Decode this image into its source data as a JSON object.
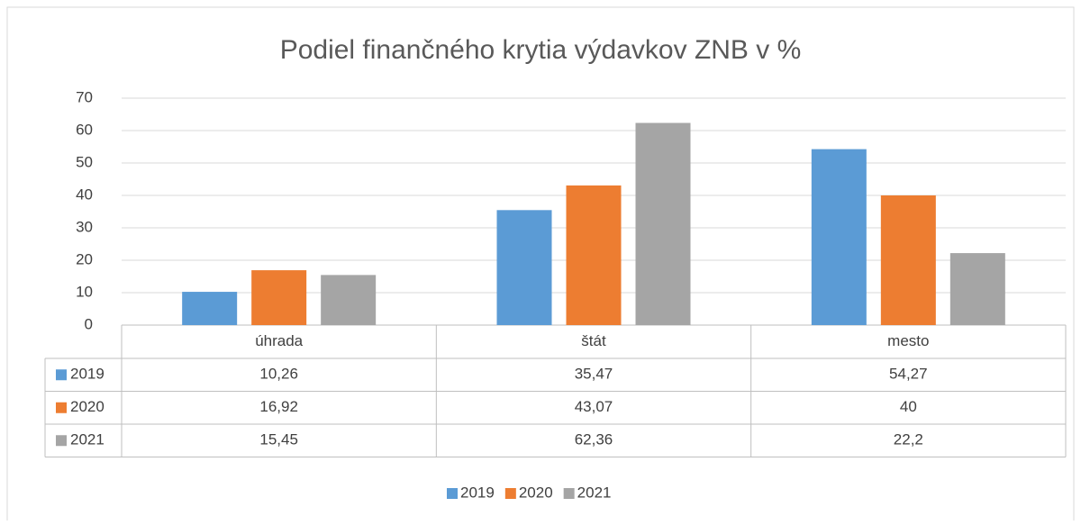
{
  "chart_data": {
    "type": "bar",
    "title": "Podiel finančného krytia výdavkov ZNB v %",
    "categories": [
      "úhrada",
      "štát",
      "mesto"
    ],
    "series": [
      {
        "name": "2019",
        "color": "#5b9bd5",
        "values": [
          10.26,
          35.47,
          54.27
        ],
        "value_labels": [
          "10,26",
          "35,47",
          "54,27"
        ]
      },
      {
        "name": "2020",
        "color": "#ed7d31",
        "values": [
          16.92,
          43.07,
          40
        ],
        "value_labels": [
          "16,92",
          "43,07",
          "40"
        ]
      },
      {
        "name": "2021",
        "color": "#a5a5a5",
        "values": [
          15.45,
          62.36,
          22.2
        ],
        "value_labels": [
          "15,45",
          "62,36",
          "22,2"
        ]
      }
    ],
    "ylim": [
      0,
      70
    ],
    "yticks": [
      0,
      10,
      20,
      30,
      40,
      50,
      60,
      70
    ],
    "grid": true,
    "legend": "bottom",
    "data_table": true
  }
}
